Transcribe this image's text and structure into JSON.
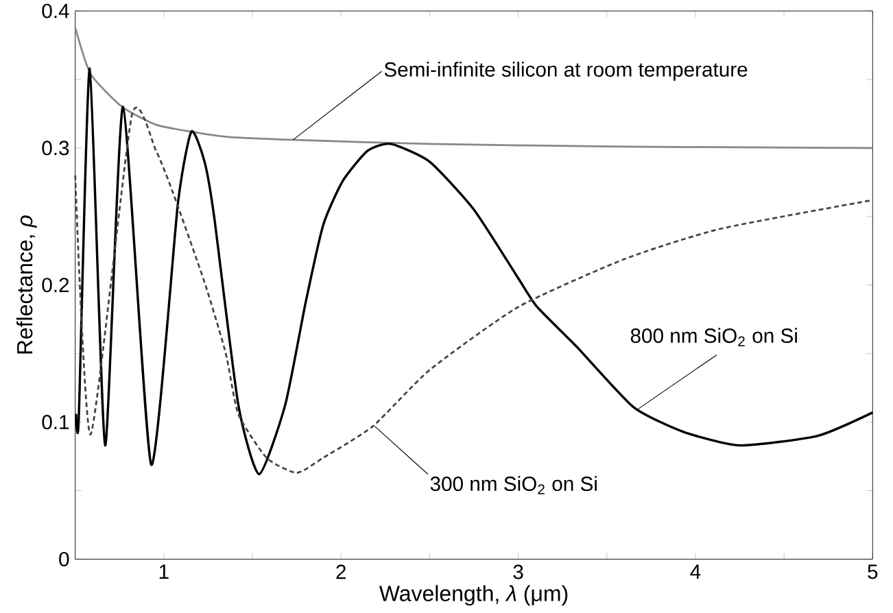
{
  "chart_data": {
    "type": "line",
    "xlabel": "Wavelength, *λ* (μm)",
    "ylabel": "Reflectance, *ρ*",
    "xlim": [
      0.5,
      5
    ],
    "ylim": [
      0,
      0.4
    ],
    "xticks": [
      1,
      {
        "value": 1.5,
        "label": null
      },
      2,
      {
        "value": 2.5,
        "label": null
      },
      3,
      {
        "value": 3.5,
        "label": null
      },
      4,
      {
        "value": 4.5,
        "label": null
      },
      5
    ],
    "yticks": [
      0,
      {
        "value": 0.05,
        "label": null
      },
      0.1,
      {
        "value": 0.15,
        "label": null
      },
      0.2,
      {
        "value": 0.25,
        "label": null
      },
      0.3,
      {
        "value": 0.35,
        "label": null
      },
      0.4
    ],
    "grid": false,
    "marker": "none",
    "series": [
      {
        "color": "#888888",
        "line_style": "solid",
        "x": [
          0.5,
          0.587,
          0.765,
          0.956,
          1.15,
          1.37,
          1.72,
          2.5,
          3.6,
          5
        ],
        "values": [
          0.388,
          0.354,
          0.33,
          0.317,
          0.312,
          0.308,
          0.306,
          0.303,
          0.301,
          0.3
        ]
      },
      {
        "color": "#000000",
        "line_style": "solid",
        "x": [
          0.505,
          0.52,
          0.582,
          0.669,
          0.77,
          0.929,
          1.08,
          1.156,
          1.23,
          1.284,
          1.42,
          1.538,
          1.686,
          1.8,
          1.9,
          2.01,
          2.15,
          2.281,
          2.5,
          2.75,
          3.0,
          3.107,
          3.33,
          3.65,
          3.93,
          4.25,
          4.69,
          5
        ],
        "values": [
          0.106,
          0.102,
          0.358,
          0.083,
          0.33,
          0.069,
          0.26,
          0.312,
          0.29,
          0.25,
          0.113,
          0.062,
          0.113,
          0.187,
          0.244,
          0.276,
          0.298,
          0.303,
          0.29,
          0.255,
          0.205,
          0.184,
          0.155,
          0.111,
          0.093,
          0.083,
          0.09,
          0.107
        ]
      },
      {
        "color": "#444444",
        "line_style": "dashed",
        "x": [
          0.5,
          0.587,
          0.82,
          0.956,
          1.05,
          1.23,
          1.35,
          1.42,
          1.58,
          1.75,
          1.9,
          2.18,
          2.5,
          3.0,
          3.6,
          4.14,
          5
        ],
        "values": [
          0.28,
          0.091,
          0.324,
          0.298,
          0.268,
          0.202,
          0.15,
          0.106,
          0.074,
          0.063,
          0.074,
          0.097,
          0.138,
          0.184,
          0.219,
          0.241,
          0.262
        ]
      }
    ],
    "annotations": [
      {
        "text": "Semi-infinite silicon at room temperature",
        "x": 1.73,
        "y": 0.306
      },
      {
        "text": "800 nm SiO$_{2}$ on Si",
        "x": 3.67,
        "y": 0.109
      },
      {
        "text": "300 nm SiO$_{2}$ on Si",
        "x": 2.19,
        "y": 0.097
      }
    ]
  }
}
